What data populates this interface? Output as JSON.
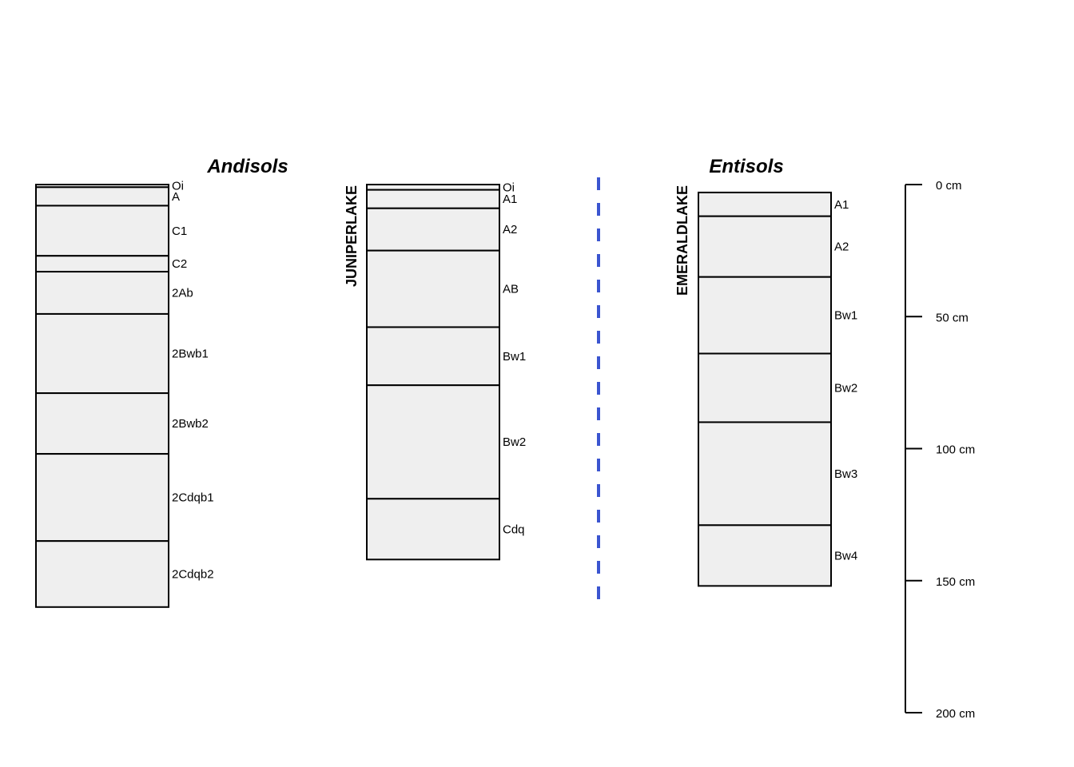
{
  "figure": {
    "groups": [
      {
        "title": "Andisols"
      },
      {
        "title": "Entisols"
      }
    ],
    "profiles": [
      {
        "id": "",
        "group": "Andisols",
        "horizons": [
          {
            "name": "Oi",
            "top": 0,
            "bottom": 1
          },
          {
            "name": "A",
            "top": 1,
            "bottom": 8
          },
          {
            "name": "C1",
            "top": 8,
            "bottom": 27
          },
          {
            "name": "C2",
            "top": 27,
            "bottom": 33
          },
          {
            "name": "2Ab",
            "top": 33,
            "bottom": 49
          },
          {
            "name": "2Bwb1",
            "top": 49,
            "bottom": 79
          },
          {
            "name": "2Bwb2",
            "top": 79,
            "bottom": 102
          },
          {
            "name": "2Cdqb1",
            "top": 102,
            "bottom": 135
          },
          {
            "name": "2Cdqb2",
            "top": 135,
            "bottom": 160
          }
        ]
      },
      {
        "id": "JUNIPERLAKE",
        "group": "Andisols",
        "horizons": [
          {
            "name": "Oi",
            "top": 0,
            "bottom": 2
          },
          {
            "name": "A1",
            "top": 2,
            "bottom": 9
          },
          {
            "name": "A2",
            "top": 9,
            "bottom": 25
          },
          {
            "name": "AB",
            "top": 25,
            "bottom": 54
          },
          {
            "name": "Bw1",
            "top": 54,
            "bottom": 76
          },
          {
            "name": "Bw2",
            "top": 76,
            "bottom": 119
          },
          {
            "name": "Cdq",
            "top": 119,
            "bottom": 142
          }
        ]
      },
      {
        "id": "EMERALDLAKE",
        "group": "Entisols",
        "horizons": [
          {
            "name": "A1",
            "top": 3,
            "bottom": 12
          },
          {
            "name": "A2",
            "top": 12,
            "bottom": 35
          },
          {
            "name": "Bw1",
            "top": 35,
            "bottom": 64
          },
          {
            "name": "Bw2",
            "top": 64,
            "bottom": 90
          },
          {
            "name": "Bw3",
            "top": 90,
            "bottom": 129
          },
          {
            "name": "Bw4",
            "top": 129,
            "bottom": 152
          }
        ]
      }
    ],
    "depth_scale": {
      "ticks": [
        0,
        50,
        100,
        150,
        200
      ],
      "labels": [
        "0 cm",
        "50 cm",
        "100 cm",
        "150 cm",
        "200 cm"
      ]
    },
    "colors": {
      "horizon_fill": "#efefef",
      "horizon_stroke": "#000000",
      "divider": "#3b55d0"
    }
  }
}
